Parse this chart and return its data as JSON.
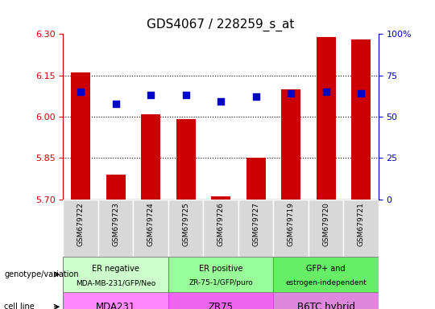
{
  "title": "GDS4067 / 228259_s_at",
  "samples": [
    "GSM679722",
    "GSM679723",
    "GSM679724",
    "GSM679725",
    "GSM679726",
    "GSM679727",
    "GSM679719",
    "GSM679720",
    "GSM679721"
  ],
  "transformed_counts": [
    6.16,
    5.79,
    6.01,
    5.99,
    5.71,
    5.85,
    6.1,
    6.29,
    6.28
  ],
  "percentile_ranks": [
    65,
    58,
    63,
    63,
    59,
    62,
    64,
    65,
    64
  ],
  "ylim_left": [
    5.7,
    6.3
  ],
  "ylim_right": [
    0,
    100
  ],
  "yticks_left": [
    5.7,
    5.85,
    6.0,
    6.15,
    6.3
  ],
  "yticks_right": [
    0,
    25,
    50,
    75,
    100
  ],
  "ytick_labels_right": [
    "0",
    "25",
    "50",
    "75",
    "100%"
  ],
  "hlines": [
    6.15,
    6.0,
    5.85
  ],
  "groups": [
    {
      "label": "ER negative\nMDA-MB-231/GFP/Neo",
      "start": 0,
      "end": 3,
      "color": "#ccffcc"
    },
    {
      "label": "ER positive\nZR-75-1/GFP/puro",
      "start": 3,
      "end": 6,
      "color": "#99ff99"
    },
    {
      "label": "GFP+ and\nestrogen-independent",
      "start": 6,
      "end": 9,
      "color": "#66ee66"
    }
  ],
  "cell_lines": [
    {
      "label": "MDA231",
      "start": 0,
      "end": 3,
      "color": "#ff88ff"
    },
    {
      "label": "ZR75",
      "start": 3,
      "end": 6,
      "color": "#ee66ee"
    },
    {
      "label": "B6TC hybrid",
      "start": 6,
      "end": 9,
      "color": "#dd88dd"
    }
  ],
  "bar_color": "#cc0000",
  "dot_color": "#0000cc",
  "bar_width": 0.55,
  "dot_size": 40,
  "title_fontsize": 11,
  "tick_color_left": "#cc0000",
  "tick_color_right": "#0000cc",
  "gray_bg": "#d8d8d8",
  "white_bg": "#ffffff"
}
